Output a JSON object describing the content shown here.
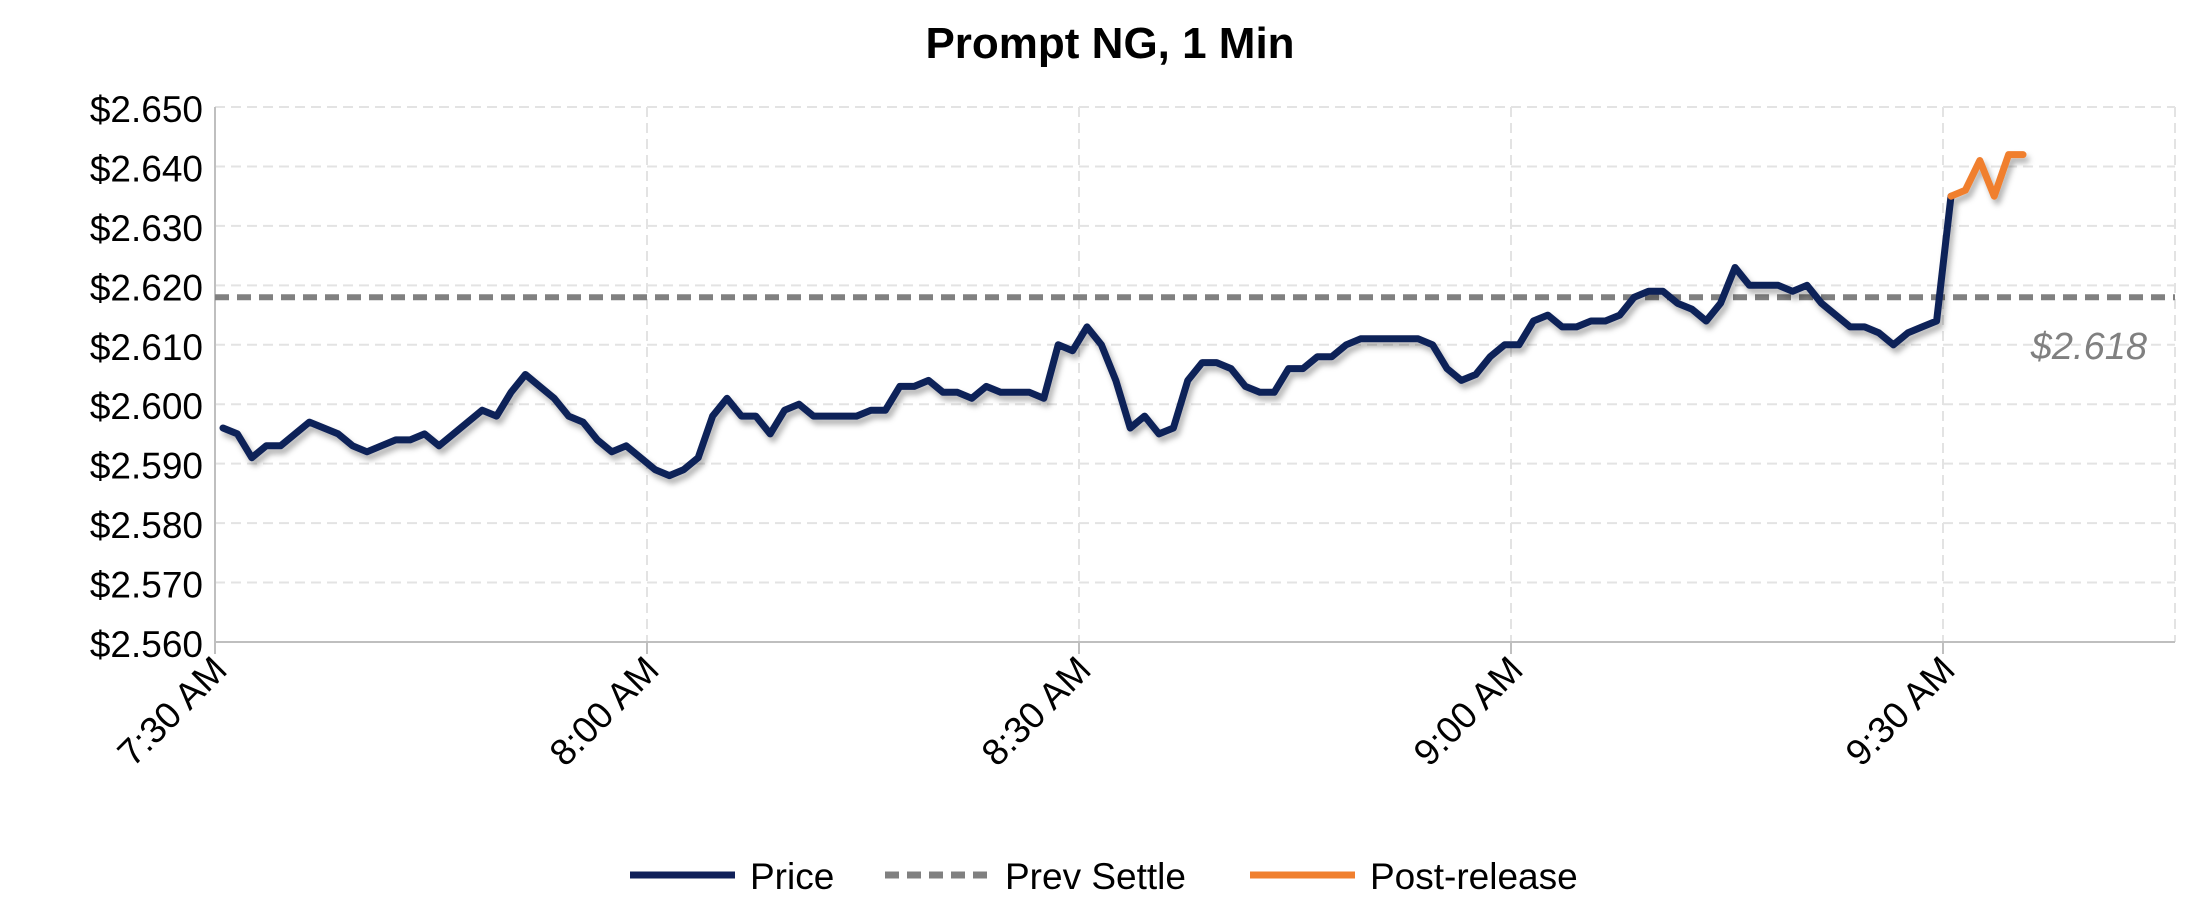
{
  "chart_data": {
    "type": "line",
    "title": "Prompt NG, 1 Min",
    "ylim": [
      2.56,
      2.65
    ],
    "y_ticks": [
      2.56,
      2.57,
      2.58,
      2.59,
      2.6,
      2.61,
      2.62,
      2.63,
      2.64,
      2.65
    ],
    "y_tick_labels": [
      "$2.560",
      "$2.570",
      "$2.580",
      "$2.590",
      "$2.600",
      "$2.610",
      "$2.620",
      "$2.630",
      "$2.640",
      "$2.650"
    ],
    "x_ticks": [
      "7:30 AM",
      "8:00 AM",
      "8:30 AM",
      "9:00 AM",
      "9:30 AM"
    ],
    "x_range_minutes_after_730": [
      0,
      136
    ],
    "grid": true,
    "legend_position": "bottom",
    "reference_line": {
      "name": "Prev Settle",
      "value": 2.618,
      "label": "$2.618",
      "color": "#808080"
    },
    "series": [
      {
        "name": "Price",
        "color": "#0f2059",
        "points": [
          [
            "7:30 AM",
            2.596
          ],
          [
            "7:31 AM",
            2.595
          ],
          [
            "7:32 AM",
            2.591
          ],
          [
            "7:33 AM",
            2.593
          ],
          [
            "7:34 AM",
            2.593
          ],
          [
            "7:35 AM",
            2.595
          ],
          [
            "7:36 AM",
            2.597
          ],
          [
            "7:37 AM",
            2.596
          ],
          [
            "7:38 AM",
            2.595
          ],
          [
            "7:39 AM",
            2.593
          ],
          [
            "7:40 AM",
            2.592
          ],
          [
            "7:41 AM",
            2.593
          ],
          [
            "7:42 AM",
            2.594
          ],
          [
            "7:43 AM",
            2.594
          ],
          [
            "7:44 AM",
            2.595
          ],
          [
            "7:45 AM",
            2.593
          ],
          [
            "7:46 AM",
            2.595
          ],
          [
            "7:47 AM",
            2.597
          ],
          [
            "7:48 AM",
            2.599
          ],
          [
            "7:49 AM",
            2.598
          ],
          [
            "7:50 AM",
            2.602
          ],
          [
            "7:51 AM",
            2.605
          ],
          [
            "7:52 AM",
            2.603
          ],
          [
            "7:53 AM",
            2.601
          ],
          [
            "7:54 AM",
            2.598
          ],
          [
            "7:55 AM",
            2.597
          ],
          [
            "7:56 AM",
            2.594
          ],
          [
            "7:57 AM",
            2.592
          ],
          [
            "7:58 AM",
            2.593
          ],
          [
            "7:59 AM",
            2.591
          ],
          [
            "8:00 AM",
            2.589
          ],
          [
            "8:01 AM",
            2.588
          ],
          [
            "8:02 AM",
            2.589
          ],
          [
            "8:03 AM",
            2.591
          ],
          [
            "8:04 AM",
            2.598
          ],
          [
            "8:05 AM",
            2.601
          ],
          [
            "8:06 AM",
            2.598
          ],
          [
            "8:07 AM",
            2.598
          ],
          [
            "8:08 AM",
            2.595
          ],
          [
            "8:09 AM",
            2.599
          ],
          [
            "8:10 AM",
            2.6
          ],
          [
            "8:11 AM",
            2.598
          ],
          [
            "8:12 AM",
            2.598
          ],
          [
            "8:13 AM",
            2.598
          ],
          [
            "8:14 AM",
            2.598
          ],
          [
            "8:15 AM",
            2.599
          ],
          [
            "8:16 AM",
            2.599
          ],
          [
            "8:17 AM",
            2.603
          ],
          [
            "8:18 AM",
            2.603
          ],
          [
            "8:19 AM",
            2.604
          ],
          [
            "8:20 AM",
            2.602
          ],
          [
            "8:21 AM",
            2.602
          ],
          [
            "8:22 AM",
            2.601
          ],
          [
            "8:23 AM",
            2.603
          ],
          [
            "8:24 AM",
            2.602
          ],
          [
            "8:25 AM",
            2.602
          ],
          [
            "8:26 AM",
            2.602
          ],
          [
            "8:27 AM",
            2.601
          ],
          [
            "8:28 AM",
            2.61
          ],
          [
            "8:29 AM",
            2.609
          ],
          [
            "8:30 AM",
            2.613
          ],
          [
            "8:31 AM",
            2.61
          ],
          [
            "8:32 AM",
            2.604
          ],
          [
            "8:33 AM",
            2.596
          ],
          [
            "8:34 AM",
            2.598
          ],
          [
            "8:35 AM",
            2.595
          ],
          [
            "8:36 AM",
            2.596
          ],
          [
            "8:37 AM",
            2.604
          ],
          [
            "8:38 AM",
            2.607
          ],
          [
            "8:39 AM",
            2.607
          ],
          [
            "8:40 AM",
            2.606
          ],
          [
            "8:41 AM",
            2.603
          ],
          [
            "8:42 AM",
            2.602
          ],
          [
            "8:43 AM",
            2.602
          ],
          [
            "8:44 AM",
            2.606
          ],
          [
            "8:45 AM",
            2.606
          ],
          [
            "8:46 AM",
            2.608
          ],
          [
            "8:47 AM",
            2.608
          ],
          [
            "8:48 AM",
            2.61
          ],
          [
            "8:49 AM",
            2.611
          ],
          [
            "8:50 AM",
            2.611
          ],
          [
            "8:51 AM",
            2.611
          ],
          [
            "8:52 AM",
            2.611
          ],
          [
            "8:53 AM",
            2.611
          ],
          [
            "8:54 AM",
            2.61
          ],
          [
            "8:55 AM",
            2.606
          ],
          [
            "8:56 AM",
            2.604
          ],
          [
            "8:57 AM",
            2.605
          ],
          [
            "8:58 AM",
            2.608
          ],
          [
            "8:59 AM",
            2.61
          ],
          [
            "9:00 AM",
            2.61
          ],
          [
            "9:01 AM",
            2.614
          ],
          [
            "9:02 AM",
            2.615
          ],
          [
            "9:03 AM",
            2.613
          ],
          [
            "9:04 AM",
            2.613
          ],
          [
            "9:05 AM",
            2.614
          ],
          [
            "9:06 AM",
            2.614
          ],
          [
            "9:07 AM",
            2.615
          ],
          [
            "9:08 AM",
            2.618
          ],
          [
            "9:09 AM",
            2.619
          ],
          [
            "9:10 AM",
            2.619
          ],
          [
            "9:11 AM",
            2.617
          ],
          [
            "9:12 AM",
            2.616
          ],
          [
            "9:13 AM",
            2.614
          ],
          [
            "9:14 AM",
            2.617
          ],
          [
            "9:15 AM",
            2.623
          ],
          [
            "9:16 AM",
            2.62
          ],
          [
            "9:17 AM",
            2.62
          ],
          [
            "9:18 AM",
            2.62
          ],
          [
            "9:19 AM",
            2.619
          ],
          [
            "9:20 AM",
            2.62
          ],
          [
            "9:21 AM",
            2.617
          ],
          [
            "9:22 AM",
            2.615
          ],
          [
            "9:23 AM",
            2.613
          ],
          [
            "9:24 AM",
            2.613
          ],
          [
            "9:25 AM",
            2.612
          ],
          [
            "9:26 AM",
            2.61
          ],
          [
            "9:27 AM",
            2.612
          ],
          [
            "9:28 AM",
            2.613
          ],
          [
            "9:29 AM",
            2.614
          ],
          [
            "9:30 AM",
            2.635
          ]
        ]
      },
      {
        "name": "Post-release",
        "color": "#f07f2e",
        "points": [
          [
            "9:30 AM",
            2.635
          ],
          [
            "9:31 AM",
            2.636
          ],
          [
            "9:32 AM",
            2.641
          ],
          [
            "9:33 AM",
            2.635
          ],
          [
            "9:34 AM",
            2.642
          ],
          [
            "9:35 AM",
            2.642
          ]
        ]
      }
    ]
  }
}
